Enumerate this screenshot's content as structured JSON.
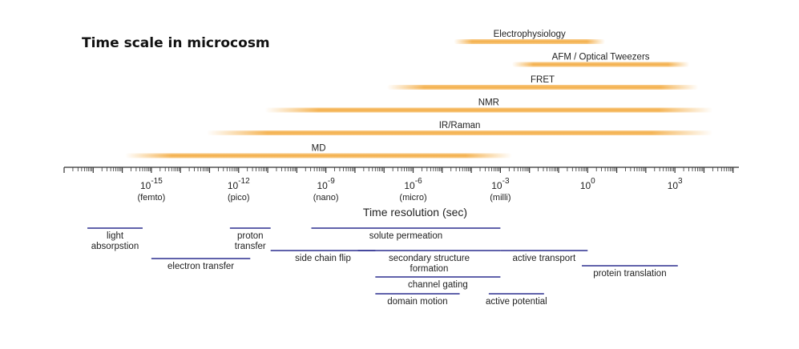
{
  "title": "Time scale in microcosm",
  "axis": {
    "label": "Time resolution (sec)",
    "ticks": [
      {
        "exp": -15,
        "base": "10",
        "sup": "-15",
        "unit": "(femto)"
      },
      {
        "exp": -12,
        "base": "10",
        "sup": "-12",
        "unit": "(pico)"
      },
      {
        "exp": -9,
        "base": "10",
        "sup": "-9",
        "unit": "(nano)"
      },
      {
        "exp": -6,
        "base": "10",
        "sup": "-6",
        "unit": "(micro)"
      },
      {
        "exp": -3,
        "base": "10",
        "sup": "-3",
        "unit": "(milli)"
      },
      {
        "exp": 0,
        "base": "10",
        "sup": "0",
        "unit": ""
      },
      {
        "exp": 3,
        "base": "10",
        "sup": "3",
        "unit": ""
      }
    ],
    "range_exp": [
      -18,
      5.2
    ]
  },
  "methods": [
    {
      "name": "Electrophysiology",
      "from": -4.6,
      "to": 0.6
    },
    {
      "name": "AFM / Optical Tweezers",
      "from": -2.6,
      "to": 3.5
    },
    {
      "name": "FRET",
      "from": -6.9,
      "to": 3.8
    },
    {
      "name": "NMR",
      "from": -11.1,
      "to": 4.3
    },
    {
      "name": "IR/Raman",
      "from": -13.1,
      "to": 4.3
    },
    {
      "name": "MD",
      "from": -15.9,
      "to": -2.6
    }
  ],
  "processes": [
    {
      "lines": [
        "light",
        "absorpstion"
      ],
      "from": -17.2,
      "to": -15.3
    },
    {
      "lines": [
        "electron transfer"
      ],
      "from": -15.0,
      "to": -11.6
    },
    {
      "lines": [
        "proton",
        "transfer"
      ],
      "from": -12.3,
      "to": -10.9
    },
    {
      "lines": [
        "side chain flip"
      ],
      "from": -10.9,
      "to": -7.3
    },
    {
      "lines": [
        "solute permeation"
      ],
      "from": -9.5,
      "to": -3.0
    },
    {
      "lines": [
        "secondary structure",
        "formation"
      ],
      "from": -7.9,
      "to": -3.0
    },
    {
      "lines": [
        "active transport"
      ],
      "from": -3.0,
      "to": 0.0
    },
    {
      "lines": [
        "protein translation"
      ],
      "from": -0.2,
      "to": 3.1
    },
    {
      "lines": [
        "channel gating"
      ],
      "from": -7.3,
      "to": -3.0
    },
    {
      "lines": [
        "domain motion"
      ],
      "from": -7.3,
      "to": -4.4
    },
    {
      "lines": [
        "active potential"
      ],
      "from": -3.4,
      "to": -1.5
    }
  ],
  "colors": {
    "method_bar": "#f2a12a",
    "process_line": "#2b2f8f",
    "axis": "#333333"
  }
}
